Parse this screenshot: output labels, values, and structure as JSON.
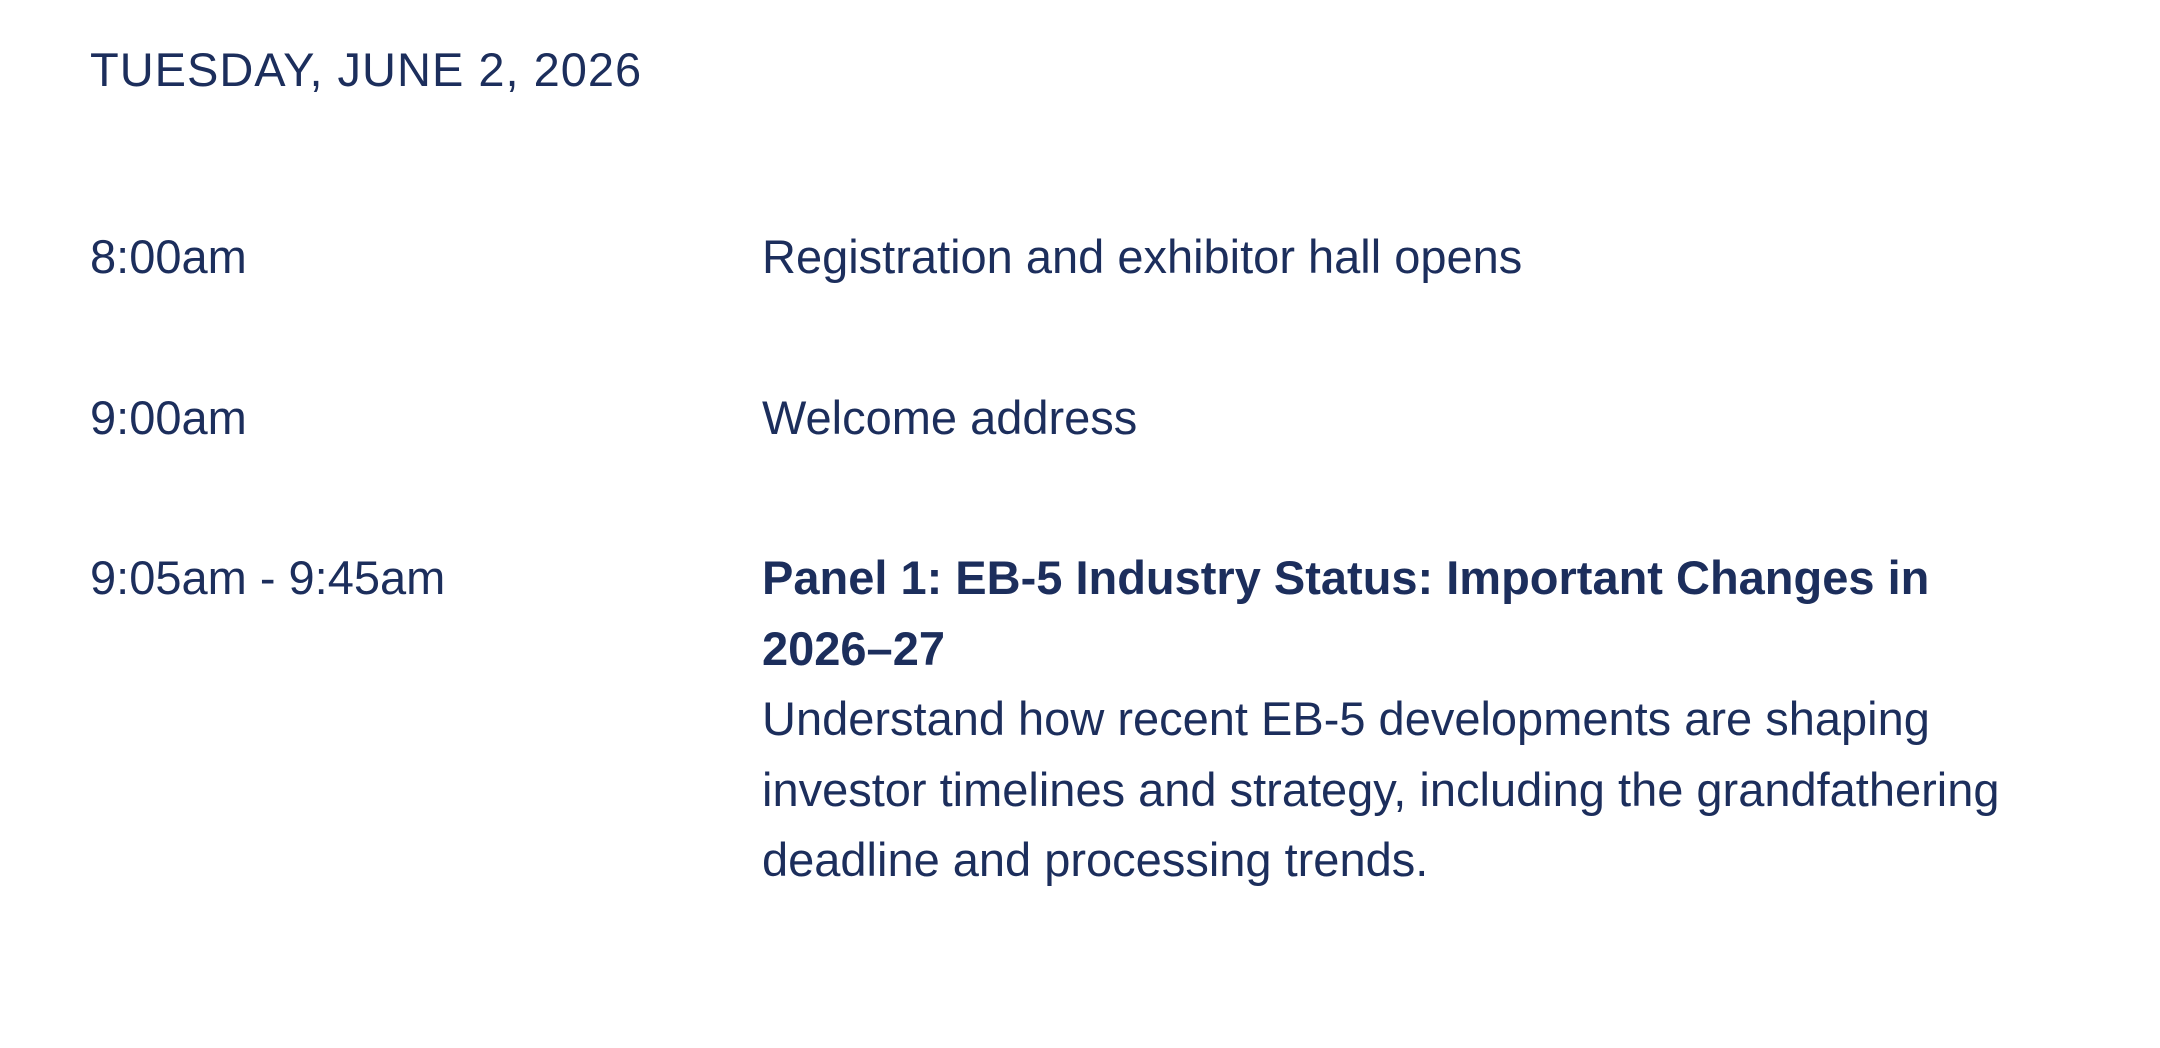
{
  "page": {
    "background_color": "#ffffff",
    "text_color": "#1c2e5c"
  },
  "schedule": {
    "day_header": "TUESDAY, JUNE 2, 2026",
    "items": [
      {
        "time": "8:00am",
        "title": "Registration and exhibitor hall opens",
        "description": ""
      },
      {
        "time": "9:00am",
        "title": "Welcome address",
        "description": ""
      },
      {
        "time": "9:05am - 9:45am",
        "title": "Panel 1: EB-5 Industry Status: Important Changes in 2026–27",
        "description": "Understand how recent EB-5 developments are shaping investor timelines and strategy, including the grandfathering deadline and processing trends."
      }
    ]
  }
}
